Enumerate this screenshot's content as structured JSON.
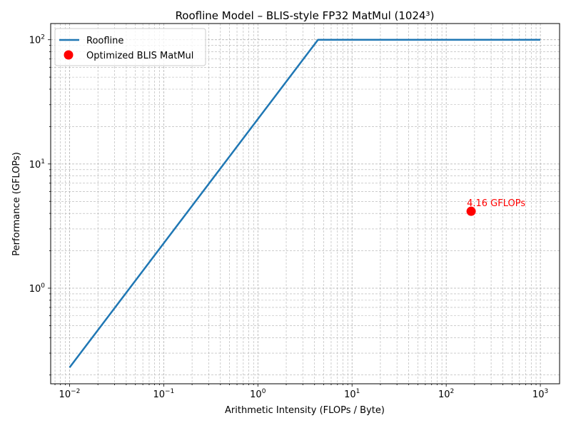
{
  "chart_data": {
    "type": "line",
    "title": "Roofline Model – BLIS-style FP32 MatMul (1024³)",
    "xlabel": "Arithmetic Intensity (FLOPs / Byte)",
    "ylabel": "Performance (GFLOPs)",
    "xscale": "log",
    "yscale": "log",
    "xlim": [
      0.0063,
      1600
    ],
    "ylim": [
      0.17,
      135
    ],
    "grid": true,
    "legend_position": "top-left",
    "x_ticks": [
      {
        "value": 0.01,
        "base": "10",
        "exp": "−2"
      },
      {
        "value": 0.1,
        "base": "10",
        "exp": "−1"
      },
      {
        "value": 1,
        "base": "10",
        "exp": "0"
      },
      {
        "value": 10,
        "base": "10",
        "exp": "1"
      },
      {
        "value": 100,
        "base": "10",
        "exp": "2"
      },
      {
        "value": 1000,
        "base": "10",
        "exp": "3"
      }
    ],
    "y_ticks": [
      {
        "value": 1,
        "base": "10",
        "exp": "0"
      },
      {
        "value": 10,
        "base": "10",
        "exp": "1"
      },
      {
        "value": 100,
        "base": "10",
        "exp": "2"
      }
    ],
    "series": [
      {
        "name": "Roofline",
        "kind": "line",
        "color": "#1f77b4",
        "x": [
          0.01,
          4.35,
          1000
        ],
        "y": [
          0.23,
          100,
          100
        ]
      },
      {
        "name": "Optimized BLIS MatMul",
        "kind": "scatter",
        "color": "#ff0000",
        "x": [
          184
        ],
        "y": [
          4.16
        ]
      }
    ],
    "annotations": [
      {
        "text": "4.16 GFLOPs",
        "x": 184,
        "y": 4.16,
        "color": "#ff0000"
      }
    ]
  }
}
